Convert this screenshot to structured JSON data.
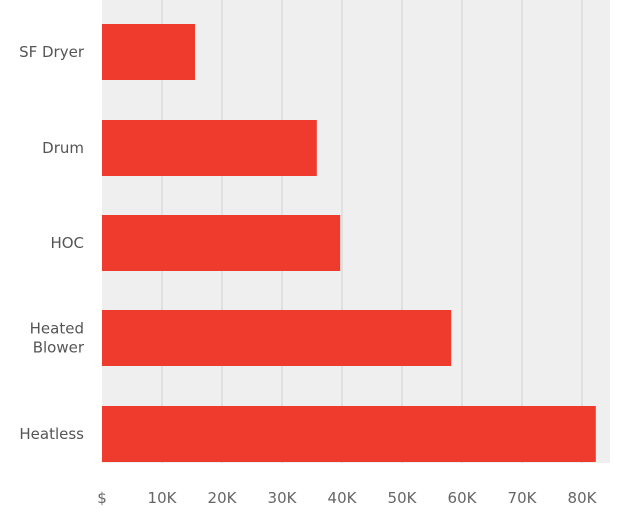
{
  "chart_data": {
    "type": "bar",
    "orientation": "horizontal",
    "categories": [
      [
        "SF Dryer"
      ],
      [
        "Drum"
      ],
      [
        "HOC"
      ],
      [
        "Heated",
        "Blower"
      ],
      [
        "Heatless"
      ]
    ],
    "values": [
      15500,
      35800,
      39700,
      58200,
      82300
    ],
    "x_ticks": [
      "$",
      "10K",
      "20K",
      "30K",
      "40K",
      "50K",
      "60K",
      "70K",
      "80K"
    ],
    "x_tick_values": [
      0,
      10000,
      20000,
      30000,
      40000,
      50000,
      60000,
      70000,
      80000
    ],
    "xlim": [
      0,
      83000
    ],
    "title": "",
    "xlabel": "",
    "ylabel": "",
    "grid": true,
    "legend": false,
    "colors": {
      "bar": "#EE3B2D",
      "plot_background": "#EFEFEF",
      "grid": "#D0D0D0",
      "tick_text": "#666666",
      "category_text": "#555555"
    }
  }
}
